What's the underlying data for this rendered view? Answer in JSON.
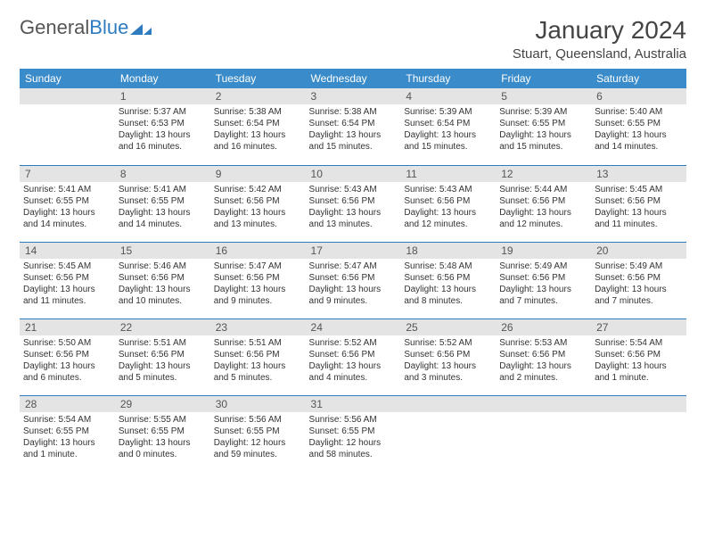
{
  "logo": {
    "text1": "General",
    "text2": "Blue"
  },
  "title": "January 2024",
  "location": "Stuart, Queensland, Australia",
  "colors": {
    "header_bg": "#3a8bc9",
    "header_text": "#ffffff",
    "daynum_bg": "#e4e4e4",
    "row_border": "#2f7bbf",
    "logo_accent": "#2f7bbf"
  },
  "weekdays": [
    "Sunday",
    "Monday",
    "Tuesday",
    "Wednesday",
    "Thursday",
    "Friday",
    "Saturday"
  ],
  "weeks": [
    [
      null,
      {
        "n": "1",
        "sr": "Sunrise: 5:37 AM",
        "ss": "Sunset: 6:53 PM",
        "dl": "Daylight: 13 hours and 16 minutes."
      },
      {
        "n": "2",
        "sr": "Sunrise: 5:38 AM",
        "ss": "Sunset: 6:54 PM",
        "dl": "Daylight: 13 hours and 16 minutes."
      },
      {
        "n": "3",
        "sr": "Sunrise: 5:38 AM",
        "ss": "Sunset: 6:54 PM",
        "dl": "Daylight: 13 hours and 15 minutes."
      },
      {
        "n": "4",
        "sr": "Sunrise: 5:39 AM",
        "ss": "Sunset: 6:54 PM",
        "dl": "Daylight: 13 hours and 15 minutes."
      },
      {
        "n": "5",
        "sr": "Sunrise: 5:39 AM",
        "ss": "Sunset: 6:55 PM",
        "dl": "Daylight: 13 hours and 15 minutes."
      },
      {
        "n": "6",
        "sr": "Sunrise: 5:40 AM",
        "ss": "Sunset: 6:55 PM",
        "dl": "Daylight: 13 hours and 14 minutes."
      }
    ],
    [
      {
        "n": "7",
        "sr": "Sunrise: 5:41 AM",
        "ss": "Sunset: 6:55 PM",
        "dl": "Daylight: 13 hours and 14 minutes."
      },
      {
        "n": "8",
        "sr": "Sunrise: 5:41 AM",
        "ss": "Sunset: 6:55 PM",
        "dl": "Daylight: 13 hours and 14 minutes."
      },
      {
        "n": "9",
        "sr": "Sunrise: 5:42 AM",
        "ss": "Sunset: 6:56 PM",
        "dl": "Daylight: 13 hours and 13 minutes."
      },
      {
        "n": "10",
        "sr": "Sunrise: 5:43 AM",
        "ss": "Sunset: 6:56 PM",
        "dl": "Daylight: 13 hours and 13 minutes."
      },
      {
        "n": "11",
        "sr": "Sunrise: 5:43 AM",
        "ss": "Sunset: 6:56 PM",
        "dl": "Daylight: 13 hours and 12 minutes."
      },
      {
        "n": "12",
        "sr": "Sunrise: 5:44 AM",
        "ss": "Sunset: 6:56 PM",
        "dl": "Daylight: 13 hours and 12 minutes."
      },
      {
        "n": "13",
        "sr": "Sunrise: 5:45 AM",
        "ss": "Sunset: 6:56 PM",
        "dl": "Daylight: 13 hours and 11 minutes."
      }
    ],
    [
      {
        "n": "14",
        "sr": "Sunrise: 5:45 AM",
        "ss": "Sunset: 6:56 PM",
        "dl": "Daylight: 13 hours and 11 minutes."
      },
      {
        "n": "15",
        "sr": "Sunrise: 5:46 AM",
        "ss": "Sunset: 6:56 PM",
        "dl": "Daylight: 13 hours and 10 minutes."
      },
      {
        "n": "16",
        "sr": "Sunrise: 5:47 AM",
        "ss": "Sunset: 6:56 PM",
        "dl": "Daylight: 13 hours and 9 minutes."
      },
      {
        "n": "17",
        "sr": "Sunrise: 5:47 AM",
        "ss": "Sunset: 6:56 PM",
        "dl": "Daylight: 13 hours and 9 minutes."
      },
      {
        "n": "18",
        "sr": "Sunrise: 5:48 AM",
        "ss": "Sunset: 6:56 PM",
        "dl": "Daylight: 13 hours and 8 minutes."
      },
      {
        "n": "19",
        "sr": "Sunrise: 5:49 AM",
        "ss": "Sunset: 6:56 PM",
        "dl": "Daylight: 13 hours and 7 minutes."
      },
      {
        "n": "20",
        "sr": "Sunrise: 5:49 AM",
        "ss": "Sunset: 6:56 PM",
        "dl": "Daylight: 13 hours and 7 minutes."
      }
    ],
    [
      {
        "n": "21",
        "sr": "Sunrise: 5:50 AM",
        "ss": "Sunset: 6:56 PM",
        "dl": "Daylight: 13 hours and 6 minutes."
      },
      {
        "n": "22",
        "sr": "Sunrise: 5:51 AM",
        "ss": "Sunset: 6:56 PM",
        "dl": "Daylight: 13 hours and 5 minutes."
      },
      {
        "n": "23",
        "sr": "Sunrise: 5:51 AM",
        "ss": "Sunset: 6:56 PM",
        "dl": "Daylight: 13 hours and 5 minutes."
      },
      {
        "n": "24",
        "sr": "Sunrise: 5:52 AM",
        "ss": "Sunset: 6:56 PM",
        "dl": "Daylight: 13 hours and 4 minutes."
      },
      {
        "n": "25",
        "sr": "Sunrise: 5:52 AM",
        "ss": "Sunset: 6:56 PM",
        "dl": "Daylight: 13 hours and 3 minutes."
      },
      {
        "n": "26",
        "sr": "Sunrise: 5:53 AM",
        "ss": "Sunset: 6:56 PM",
        "dl": "Daylight: 13 hours and 2 minutes."
      },
      {
        "n": "27",
        "sr": "Sunrise: 5:54 AM",
        "ss": "Sunset: 6:56 PM",
        "dl": "Daylight: 13 hours and 1 minute."
      }
    ],
    [
      {
        "n": "28",
        "sr": "Sunrise: 5:54 AM",
        "ss": "Sunset: 6:55 PM",
        "dl": "Daylight: 13 hours and 1 minute."
      },
      {
        "n": "29",
        "sr": "Sunrise: 5:55 AM",
        "ss": "Sunset: 6:55 PM",
        "dl": "Daylight: 13 hours and 0 minutes."
      },
      {
        "n": "30",
        "sr": "Sunrise: 5:56 AM",
        "ss": "Sunset: 6:55 PM",
        "dl": "Daylight: 12 hours and 59 minutes."
      },
      {
        "n": "31",
        "sr": "Sunrise: 5:56 AM",
        "ss": "Sunset: 6:55 PM",
        "dl": "Daylight: 12 hours and 58 minutes."
      },
      null,
      null,
      null
    ]
  ]
}
